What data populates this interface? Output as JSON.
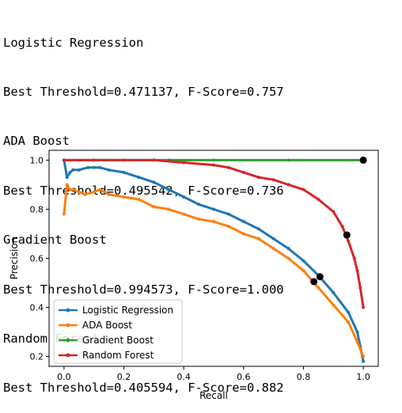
{
  "output_lines": [
    "Logistic Regression",
    "Best Threshold=0.471137, F-Score=0.757",
    "ADA Boost",
    "Best Threshold=0.495542, F-Score=0.736",
    "Gradient Boost",
    "Best Threshold=0.994573, F-Score=1.000",
    "Random Forest",
    "Best Threshold=0.405594, F-Score=0.882"
  ],
  "chart_data": {
    "type": "line",
    "xlabel": "Recall",
    "ylabel": "Precision",
    "xlim": [
      -0.05,
      1.05
    ],
    "ylim": [
      0.16,
      1.04
    ],
    "xticks": [
      "0.0",
      "0.2",
      "0.4",
      "0.6",
      "0.8",
      "1.0"
    ],
    "yticks": [
      "0.2",
      "0.4",
      "0.6",
      "0.8",
      "1.0"
    ],
    "grid": false,
    "legend_position": "lower-left",
    "series": [
      {
        "name": "Logistic Regression",
        "color": "#1f77b4",
        "x": [
          0.0,
          0.01,
          0.02,
          0.03,
          0.05,
          0.08,
          0.1,
          0.12,
          0.15,
          0.2,
          0.25,
          0.3,
          0.35,
          0.4,
          0.45,
          0.5,
          0.55,
          0.6,
          0.65,
          0.7,
          0.75,
          0.8,
          0.85,
          0.9,
          0.95,
          0.98,
          0.99,
          1.0
        ],
        "y": [
          1.0,
          0.93,
          0.95,
          0.96,
          0.96,
          0.97,
          0.97,
          0.97,
          0.96,
          0.95,
          0.93,
          0.91,
          0.88,
          0.85,
          0.82,
          0.8,
          0.78,
          0.75,
          0.72,
          0.68,
          0.64,
          0.59,
          0.53,
          0.46,
          0.38,
          0.3,
          0.24,
          0.18
        ]
      },
      {
        "name": "ADA Boost",
        "color": "#ff7f0e",
        "x": [
          0.0,
          0.01,
          0.02,
          0.03,
          0.05,
          0.07,
          0.1,
          0.12,
          0.15,
          0.2,
          0.25,
          0.3,
          0.35,
          0.4,
          0.45,
          0.5,
          0.55,
          0.6,
          0.65,
          0.7,
          0.75,
          0.8,
          0.85,
          0.9,
          0.95,
          0.98,
          1.0
        ],
        "y": [
          0.78,
          0.9,
          0.88,
          0.88,
          0.87,
          0.86,
          0.87,
          0.88,
          0.86,
          0.85,
          0.84,
          0.81,
          0.8,
          0.78,
          0.76,
          0.75,
          0.73,
          0.7,
          0.68,
          0.64,
          0.6,
          0.55,
          0.48,
          0.41,
          0.34,
          0.26,
          0.2
        ]
      },
      {
        "name": "Gradient Boost",
        "color": "#2ca02c",
        "x": [
          0.0,
          0.35,
          0.5,
          0.75,
          1.0
        ],
        "y": [
          1.0,
          1.0,
          1.0,
          1.0,
          1.0
        ]
      },
      {
        "name": "Random Forest",
        "color": "#d62728",
        "x": [
          0.0,
          0.1,
          0.2,
          0.3,
          0.4,
          0.5,
          0.55,
          0.6,
          0.65,
          0.7,
          0.75,
          0.8,
          0.85,
          0.9,
          0.93,
          0.95,
          0.97,
          0.98,
          0.99,
          1.0
        ],
        "y": [
          1.0,
          1.0,
          1.0,
          1.0,
          0.99,
          0.98,
          0.97,
          0.95,
          0.93,
          0.92,
          0.9,
          0.88,
          0.84,
          0.79,
          0.73,
          0.67,
          0.6,
          0.55,
          0.48,
          0.4
        ]
      }
    ],
    "best_points": [
      {
        "x": 0.855,
        "y": 0.525
      },
      {
        "x": 0.835,
        "y": 0.505
      },
      {
        "x": 1.0,
        "y": 1.0
      },
      {
        "x": 0.945,
        "y": 0.695
      }
    ]
  }
}
